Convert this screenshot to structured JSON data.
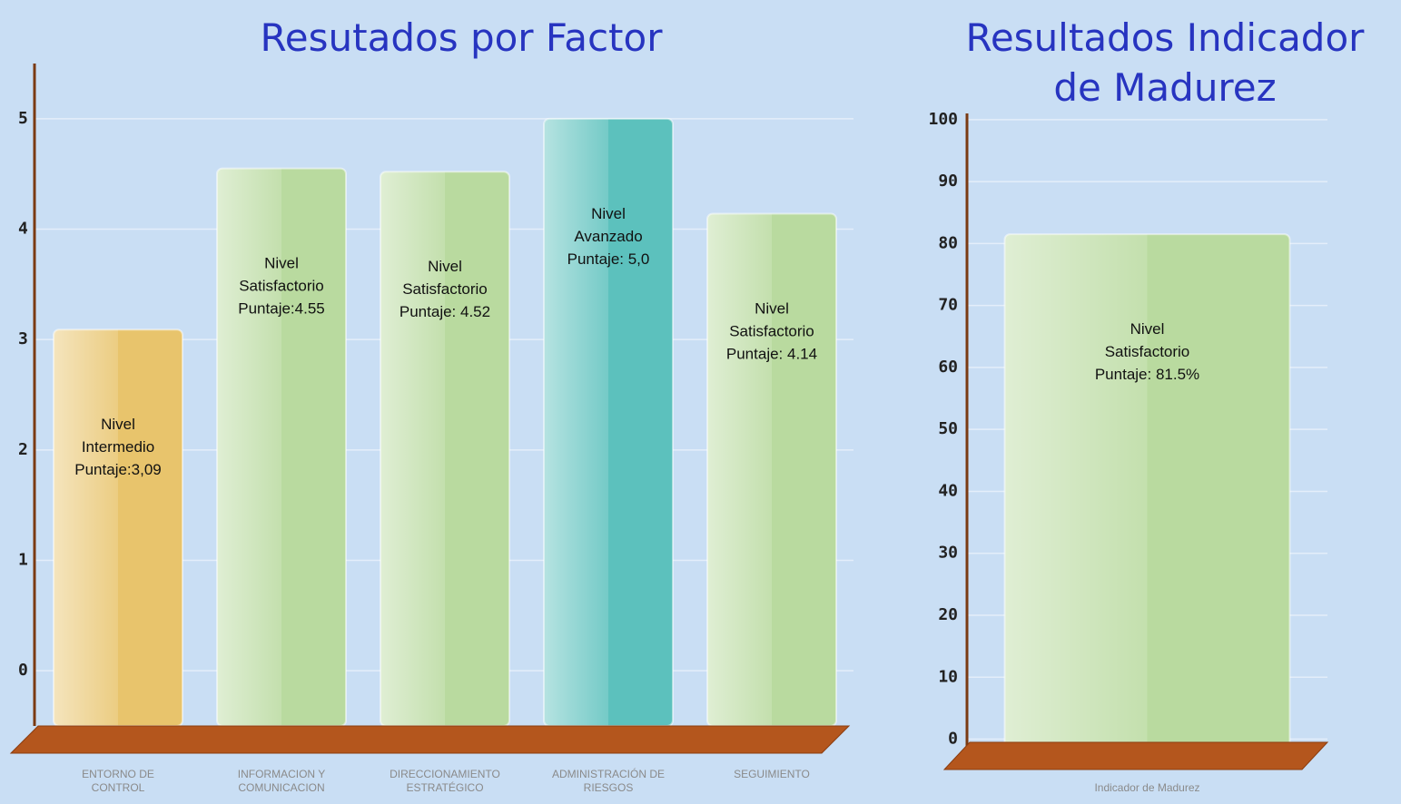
{
  "chart_data": [
    {
      "type": "bar",
      "title": "Resutados por Factor",
      "categories": [
        "ENTORNO DE CONTROL",
        "INFORMACION Y COMUNICACION",
        "DIRECCIONAMIENTO ESTRATÉGICO",
        "ADMINISTRACIÓN DE RIESGOS",
        "SEGUIMIENTO"
      ],
      "values": [
        3.09,
        4.55,
        4.52,
        5.0,
        4.14
      ],
      "levels": [
        "Nivel Intermedio",
        "Nivel Satisfactorio",
        "Nivel Satisfactorio",
        "Nivel Avanzado",
        "Nivel Satisfactorio"
      ],
      "value_labels": [
        "Puntaje:3,09",
        "Puntaje:4.55",
        "Puntaje: 4.52",
        "Puntaje: 5,0",
        "Puntaje: 4.14"
      ],
      "colors": [
        "#e8c46c",
        "#b9da9f",
        "#b9da9f",
        "#5cc1bd",
        "#b9da9f"
      ],
      "ylim": [
        -0.5,
        5.5
      ],
      "yticks": [
        0,
        1,
        2,
        3,
        4,
        5
      ],
      "grid": true
    },
    {
      "type": "bar",
      "title": "Resultados Indicador de Madurez",
      "categories": [
        "Indicador de Madurez"
      ],
      "values": [
        81.5
      ],
      "levels": [
        "Nivel Satisfactorio"
      ],
      "value_labels": [
        "Puntaje: 81.5%"
      ],
      "colors": [
        "#b9da9f"
      ],
      "ylim": [
        -3,
        101
      ],
      "yticks": [
        0,
        10,
        20,
        30,
        40,
        50,
        60,
        70,
        80,
        90,
        100
      ],
      "grid": true
    }
  ]
}
